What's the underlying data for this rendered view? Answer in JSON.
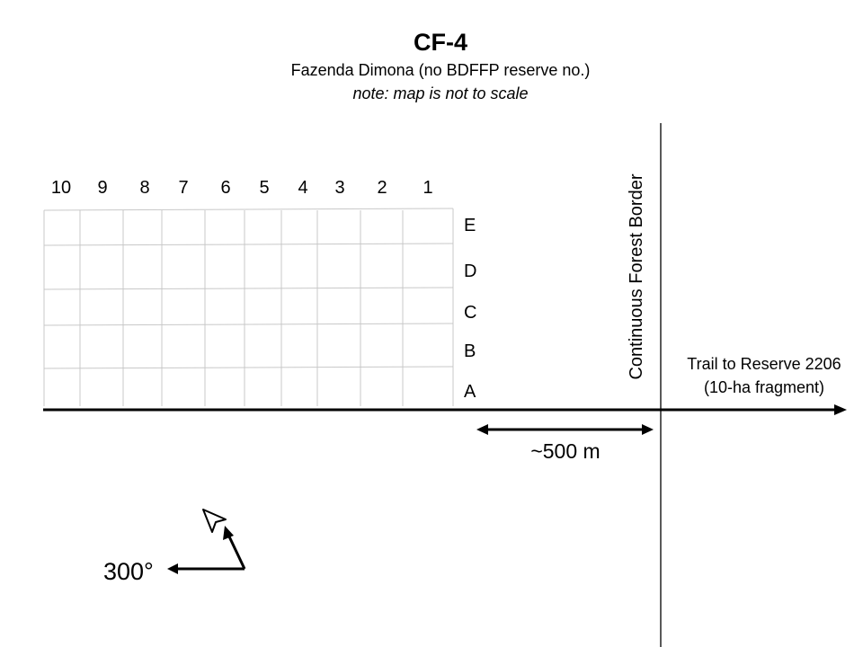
{
  "header": {
    "title": "CF-4",
    "subtitle": "Fazenda Dimona (no BDFFP reserve no.)",
    "note": "note: map is not to scale"
  },
  "plot_grid": {
    "columns": [
      "10",
      "9",
      "8",
      "7",
      "6",
      "5",
      "4",
      "3",
      "2",
      "1"
    ],
    "rows": [
      "E",
      "D",
      "C",
      "B",
      "A"
    ]
  },
  "border": {
    "label": "Continuous Forest Border"
  },
  "trail": {
    "line1": "Trail to Reserve 2206",
    "line2": "(10-ha fragment)"
  },
  "distance": {
    "label": "~500 m"
  },
  "bearing": {
    "label": "300°"
  }
}
